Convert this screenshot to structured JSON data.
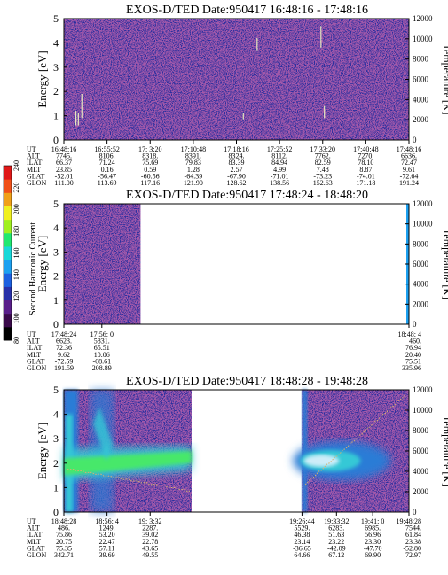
{
  "chart_data": [
    {
      "type": "heatmap",
      "title": "EXOS-D/TED   Date:950417   16:48:16 - 17:48:16",
      "ylabel": "Energy [eV]",
      "y2label": "Temperature [K]",
      "ylim": [
        0,
        5
      ],
      "y2lim": [
        0,
        12000
      ],
      "yticks": [
        "0",
        "1",
        "2",
        "3",
        "4",
        "5"
      ],
      "y2ticks": [
        "0",
        "2000",
        "4000",
        "6000",
        "8000",
        "10000",
        "12000"
      ],
      "orbit_row_labels": [
        "UT",
        "ALT",
        "ILAT",
        "MLT",
        "GLAT",
        "GLON"
      ],
      "orbit_columns": [
        [
          "16:48:16",
          "7745.",
          "66.37",
          "23.85",
          "-52.01",
          "111.00"
        ],
        [
          "16:55:52",
          "8106.",
          "71.24",
          "0.16",
          "-56.47",
          "113.69"
        ],
        [
          "17: 3:20",
          "8318.",
          "75.69",
          "0.59",
          "-60.56",
          "117.16"
        ],
        [
          "17:10:48",
          "8391.",
          "79.83",
          "1.28",
          "-64.39",
          "121.90"
        ],
        [
          "17:18:16",
          "8324.",
          "83.39",
          "2.57",
          "-67.90",
          "128.62"
        ],
        [
          "17:25:52",
          "8112.",
          "84.94",
          "4.99",
          "-71.01",
          "138.56"
        ],
        [
          "17:33:20",
          "7762.",
          "82.59",
          "7.48",
          "-73.23",
          "152.63"
        ],
        [
          "17:40:48",
          "7270.",
          "78.10",
          "8.87",
          "-74.01",
          "171.18"
        ],
        [
          "17:48:16",
          "6636.",
          "72.47",
          "9.61",
          "-72.64",
          "191.24"
        ]
      ],
      "data_coverage": [
        [
          0.0,
          1.0
        ]
      ],
      "colors": {
        "background": "#2b2f9e",
        "noise": "#7a1f6a",
        "spike": "#e8e8c0"
      }
    },
    {
      "type": "heatmap",
      "title": "EXOS-D/TED   Date:950417   17:48:24 - 18:48:20",
      "ylabel": "Energy [eV]",
      "y2label": "Temperature [K]",
      "ylim": [
        0,
        5
      ],
      "y2lim": [
        0,
        12000
      ],
      "yticks": [
        "0",
        "1",
        "2",
        "3",
        "4",
        "5"
      ],
      "y2ticks": [
        "0",
        "2000",
        "4000",
        "6000",
        "8000",
        "10000",
        "12000"
      ],
      "orbit_row_labels": [
        "UT",
        "ALT",
        "ILAT",
        "MLT",
        "GLAT",
        "GLON"
      ],
      "orbit_columns": [
        [
          "17:48:24",
          "6623.",
          "72.36",
          "9.62",
          "-72.59",
          "191.59"
        ],
        [
          "17:56: 0",
          "5831.",
          "65.51",
          "10.06",
          "-68.61",
          "208.89"
        ],
        [
          "18:48: 4",
          "460.",
          "76.94",
          "20.40",
          "75.51",
          "335.96"
        ]
      ],
      "data_coverage": [
        [
          0.0,
          0.222
        ]
      ],
      "colors": {
        "background": "#2b2f9e",
        "noise": "#7a1f6a"
      }
    },
    {
      "type": "heatmap",
      "title": "EXOS-D/TED   Date:950417   18:48:28 - 19:48:28",
      "ylabel": "Energy [eV]",
      "y2label": "Temperature [K]",
      "ylim": [
        0,
        5
      ],
      "y2lim": [
        0,
        12000
      ],
      "yticks": [
        "0",
        "1",
        "2",
        "3",
        "4",
        "5"
      ],
      "y2ticks": [
        "0",
        "2000",
        "4000",
        "6000",
        "8000",
        "10000",
        "12000"
      ],
      "orbit_row_labels": [
        "UT",
        "ALT",
        "ILAT",
        "MLT",
        "GLAT",
        "GLON"
      ],
      "orbit_columns": [
        [
          "18:48:28",
          "486.",
          "75.86",
          "20.75",
          "75.35",
          "342.71"
        ],
        [
          "18:56: 4",
          "1249.",
          "53.20",
          "22.47",
          "57.11",
          "39.69"
        ],
        [
          "19: 3:32",
          "2287.",
          "39.02",
          "22.78",
          "43.65",
          "49.55"
        ],
        [
          "19:26:44",
          "5529.",
          "46.38",
          "23.14",
          "-36.65",
          "64.66"
        ],
        [
          "19:33:32",
          "6283.",
          "51.63",
          "23.22",
          "-42.09",
          "67.12"
        ],
        [
          "19:41: 0",
          "6985.",
          "56.96",
          "23.30",
          "-47.70",
          "69.90"
        ],
        [
          "19:48:28",
          "7544.",
          "61.84",
          "23.38",
          "-52.80",
          "72.97"
        ]
      ],
      "data_coverage": [
        [
          0.0,
          0.37
        ],
        [
          0.69,
          1.0
        ]
      ],
      "colors": {
        "background": "#2b2f9e",
        "low": "#2a7bd6",
        "mid": "#34c8d6",
        "high": "#46e86a",
        "peak": "#b8f040",
        "temperature": "#d6b070"
      }
    },
    {
      "type": "colorbar",
      "label": "Second Harmonic Current",
      "ticks": [
        "80",
        "100",
        "120",
        "140",
        "160",
        "180",
        "200",
        "220",
        "240"
      ],
      "range": [
        80,
        240
      ],
      "colors": [
        "#000000",
        "#3a0a4a",
        "#5a1f8a",
        "#2830a8",
        "#1c60e0",
        "#1ca0f0",
        "#18d8d8",
        "#20e870",
        "#a0f020",
        "#f0f020",
        "#f0a018",
        "#f05018",
        "#e01818"
      ]
    }
  ]
}
